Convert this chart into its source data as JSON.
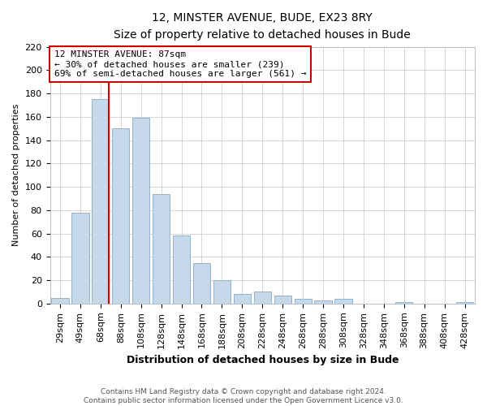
{
  "title": "12, MINSTER AVENUE, BUDE, EX23 8RY",
  "subtitle": "Size of property relative to detached houses in Bude",
  "xlabel": "Distribution of detached houses by size in Bude",
  "ylabel": "Number of detached properties",
  "bar_labels": [
    "29sqm",
    "49sqm",
    "68sqm",
    "88sqm",
    "108sqm",
    "128sqm",
    "148sqm",
    "168sqm",
    "188sqm",
    "208sqm",
    "228sqm",
    "248sqm",
    "268sqm",
    "288sqm",
    "308sqm",
    "328sqm",
    "348sqm",
    "368sqm",
    "388sqm",
    "408sqm",
    "428sqm"
  ],
  "bar_values": [
    5,
    78,
    175,
    150,
    159,
    94,
    58,
    35,
    20,
    8,
    10,
    7,
    4,
    3,
    4,
    0,
    0,
    1,
    0,
    0,
    1
  ],
  "bar_color": "#c5d9ea",
  "bar_edge_color": "#92b4ce",
  "marker_bar_index": 2,
  "marker_side": "right",
  "marker_label": "12 MINSTER AVENUE: 87sqm",
  "marker_color": "#cc0000",
  "annotation_line1": "← 30% of detached houses are smaller (239)",
  "annotation_line2": "69% of semi-detached houses are larger (561) →",
  "ylim": [
    0,
    220
  ],
  "yticks": [
    0,
    20,
    40,
    60,
    80,
    100,
    120,
    140,
    160,
    180,
    200,
    220
  ],
  "footer1": "Contains HM Land Registry data © Crown copyright and database right 2024.",
  "footer2": "Contains public sector information licensed under the Open Government Licence v3.0.",
  "figsize": [
    6.0,
    5.0
  ],
  "dpi": 100,
  "title_fontsize": 10,
  "subtitle_fontsize": 9,
  "xlabel_fontsize": 9,
  "ylabel_fontsize": 8,
  "tick_fontsize": 8,
  "annot_fontsize": 8,
  "footer_fontsize": 6.5
}
